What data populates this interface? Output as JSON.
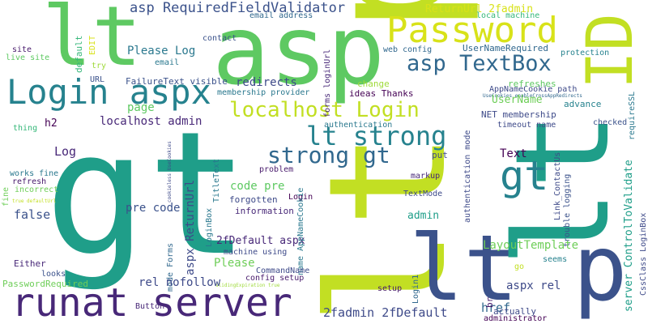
{
  "words": [
    {
      "text": "gt",
      "color": "#1f9e89"
    },
    {
      "text": "lt p",
      "color": "#c2df23"
    },
    {
      "text": "asp",
      "color": "#5ec962"
    },
    {
      "text": "lt",
      "color": "#5ec962"
    },
    {
      "text": "lt p",
      "color": "#3b528b"
    },
    {
      "text": "lt",
      "color": "#1f9e89"
    },
    {
      "text": "runat server",
      "color": "#482878"
    },
    {
      "text": "Login aspx",
      "color": "#26828e"
    },
    {
      "text": "Password",
      "color": "#d8e219"
    },
    {
      "text": "ID",
      "color": "#c2df23"
    },
    {
      "text": "localhost Login",
      "color": "#c2df23"
    },
    {
      "text": "asp TextBox",
      "color": "#31688e"
    },
    {
      "text": "lt strong",
      "color": "#26828e"
    },
    {
      "text": "strong gt",
      "color": "#31688e"
    },
    {
      "text": "gt",
      "color": "#26828e"
    },
    {
      "text": "asp RequiredFieldValidator",
      "color": "#3b528b"
    },
    {
      "text": "ReturnUrl 2fadmin",
      "color": "#d8e219"
    },
    {
      "text": "email address",
      "color": "#31688e"
    },
    {
      "text": "local machine",
      "color": "#35b779"
    },
    {
      "text": "web config",
      "color": "#31688e"
    },
    {
      "text": "UserNameRequired",
      "color": "#31688e"
    },
    {
      "text": "protection",
      "color": "#26828e"
    },
    {
      "text": "Please Log",
      "color": "#2a788e"
    },
    {
      "text": "contact",
      "color": "#3b528b"
    },
    {
      "text": "site",
      "color": "#481a6c"
    },
    {
      "text": "live site",
      "color": "#5ec962"
    },
    {
      "text": "EDIT",
      "color": "#d8e219"
    },
    {
      "text": "default",
      "color": "#35b779"
    },
    {
      "text": "email",
      "color": "#2a788e"
    },
    {
      "text": "try",
      "color": "#9fda3a"
    },
    {
      "text": "URL",
      "color": "#3b528b"
    },
    {
      "text": "FailureText visible",
      "color": "#3b528b"
    },
    {
      "text": "redirects",
      "color": "#3e4a89"
    },
    {
      "text": "membership provider",
      "color": "#2a788e"
    },
    {
      "text": "change",
      "color": "#9fda3a"
    },
    {
      "text": "ideas Thanks",
      "color": "#440154"
    },
    {
      "text": "AppNameCookie path",
      "color": "#3e4a89"
    },
    {
      "text": "UseCookies enableCrossAppRedirects",
      "color": "#31688e"
    },
    {
      "text": "refreshes",
      "color": "#5ec962"
    },
    {
      "text": "advance",
      "color": "#26828e"
    },
    {
      "text": "UserName",
      "color": "#6ece58"
    },
    {
      "text": "page",
      "color": "#5ec962"
    },
    {
      "text": "localhost admin",
      "color": "#482878"
    },
    {
      "text": "h2",
      "color": "#440154"
    },
    {
      "text": "thing",
      "color": "#35b779"
    },
    {
      "text": "Log",
      "color": "#482878"
    },
    {
      "text": "NET membership",
      "color": "#3e4a89"
    },
    {
      "text": "authentication",
      "color": "#2a788e"
    },
    {
      "text": "timeout name",
      "color": "#3e4a89"
    },
    {
      "text": "checked",
      "color": "#3b528b"
    },
    {
      "text": "Text",
      "color": "#440154"
    },
    {
      "text": "put",
      "color": "#3e4a89"
    },
    {
      "text": "Link_ContactUs",
      "color": "#3e4a89"
    },
    {
      "text": "authentication mode",
      "color": "#3e4a89"
    },
    {
      "text": "forms loginUrl",
      "color": "#482878"
    },
    {
      "text": "requireSSL",
      "color": "#2a788e"
    },
    {
      "text": "trouble logging",
      "color": "#3b528b"
    },
    {
      "text": "CssClass LoginBox",
      "color": "#3e4a89"
    },
    {
      "text": "server ControlToValidate",
      "color": "#1f9e89"
    },
    {
      "text": "works fine",
      "color": "#2a788e"
    },
    {
      "text": "refresh",
      "color": "#481a6c"
    },
    {
      "text": "incorrect",
      "color": "#6ece58"
    },
    {
      "text": "fine",
      "color": "#6ece58"
    },
    {
      "text": "true defaultUrl",
      "color": "#c2df23"
    },
    {
      "text": "false",
      "color": "#3b528b"
    },
    {
      "text": "cookieless UseCookies",
      "color": "#3e4a89"
    },
    {
      "text": "mode Forms",
      "color": "#31688e"
    },
    {
      "text": "code pre",
      "color": "#5ec962"
    },
    {
      "text": "forgotten",
      "color": "#3e4a89"
    },
    {
      "text": "information",
      "color": "#482878"
    },
    {
      "text": "problem",
      "color": "#481a6c"
    },
    {
      "text": "Login",
      "color": "#440154"
    },
    {
      "text": "markup",
      "color": "#482878"
    },
    {
      "text": "TextMode",
      "color": "#3e4a89"
    },
    {
      "text": "admin",
      "color": "#1f9e89"
    },
    {
      "text": "pre code",
      "color": "#3b528b"
    },
    {
      "text": "aspx ReturnUrl",
      "color": "#3e4a89"
    },
    {
      "text": "LoginBox",
      "color": "#2a788e"
    },
    {
      "text": "LayoutTemplate",
      "color": "#6ece58"
    },
    {
      "text": "2fDefault aspx",
      "color": "#482878"
    },
    {
      "text": "Please",
      "color": "#6ece58"
    },
    {
      "text": "TitleText",
      "color": "#2a788e"
    },
    {
      "text": "machine using",
      "color": "#3e4a89"
    },
    {
      "text": "name AppNameCookie",
      "color": "#2a788e"
    },
    {
      "text": "CommandName",
      "color": "#3e4a89"
    },
    {
      "text": "config setup",
      "color": "#481a6c"
    },
    {
      "text": "slidingExpiration true",
      "color": "#9fda3a"
    },
    {
      "text": "Either",
      "color": "#482878"
    },
    {
      "text": "rel nofollow",
      "color": "#3e4a89"
    },
    {
      "text": "aspx rel",
      "color": "#3e4a89"
    },
    {
      "text": "Login1",
      "color": "#31688e"
    },
    {
      "text": "setup",
      "color": "#481a6c"
    },
    {
      "text": "href",
      "color": "#31688e"
    },
    {
      "text": "br",
      "color": "#481a6c"
    },
    {
      "text": "go",
      "color": "#c2df23"
    },
    {
      "text": "seems",
      "color": "#26828e"
    },
    {
      "text": "looks",
      "color": "#3b528b"
    },
    {
      "text": "PasswordRequired",
      "color": "#6ece58"
    },
    {
      "text": "Button",
      "color": "#482878"
    },
    {
      "text": "2fadmin 2fDefault",
      "color": "#3e4a89"
    },
    {
      "text": "actually",
      "color": "#3e4a89"
    },
    {
      "text": "administrator",
      "color": "#440154"
    }
  ]
}
